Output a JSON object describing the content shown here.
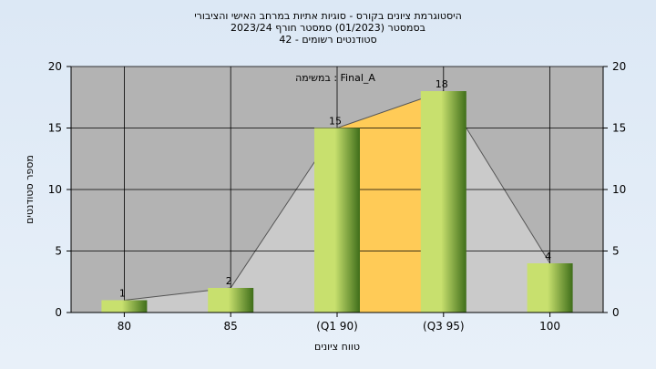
{
  "chart_data": {
    "type": "bar",
    "title_lines": [
      "היסטוגרמת ציונים בקורס - סוגיות אתיות במרחב האישי והציבורי",
      "בסמסטר  (01/2023)  סמסטר חורף 2023/24",
      "סטודנטים רשומים - 42"
    ],
    "annotation": "Final_A : במשימה",
    "categories": [
      "80",
      "85",
      "(Q1 90)",
      "(Q3 95)",
      "100"
    ],
    "values": [
      1,
      2,
      15,
      18,
      4
    ],
    "xlabel": "טווח ציונים",
    "ylabel": "מספר סטודנטים",
    "ylim": [
      0,
      20
    ],
    "yticks": [
      0,
      5,
      10,
      15,
      20
    ],
    "grid": true,
    "colors": {
      "plot_bg": "#b3b3b3",
      "bar_light": "#c8e06e",
      "bar_dark": "#3f6e1a",
      "iqr_band": "#ffcb57",
      "area_fill": "#cbcbcb"
    }
  }
}
